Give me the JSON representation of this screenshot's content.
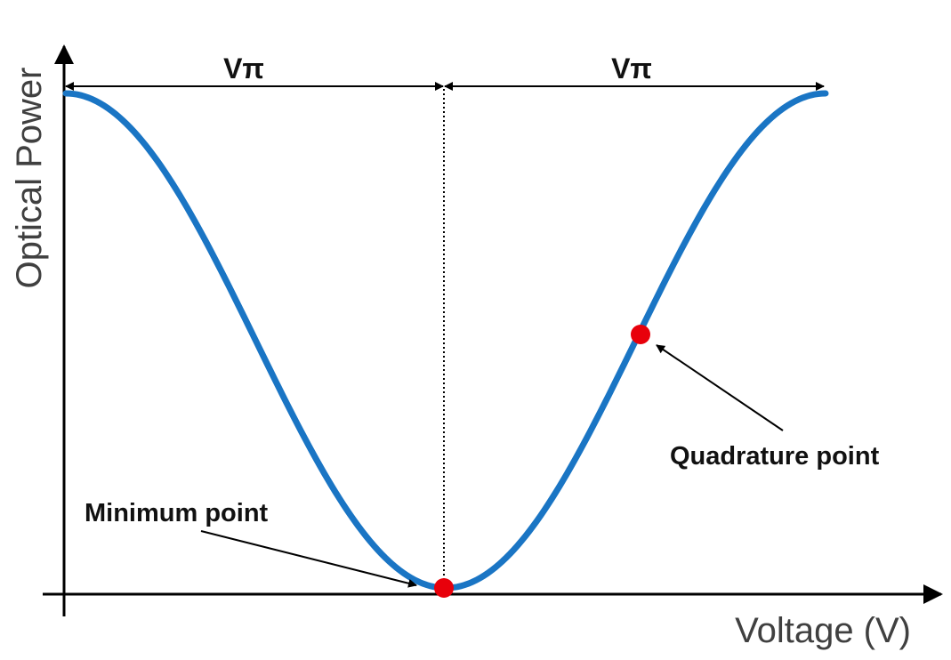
{
  "axes": {
    "x_label": "Voltage (V)",
    "y_label": "Optical Power"
  },
  "dimensions": {
    "left_span_label": "Vπ",
    "right_span_label": "Vπ"
  },
  "annotations": {
    "minimum_point": "Minimum point",
    "quadrature_point": "Quadrature point"
  },
  "colors": {
    "curve": "#1a75c4",
    "marker": "#e8000b",
    "axis": "#000000"
  }
}
